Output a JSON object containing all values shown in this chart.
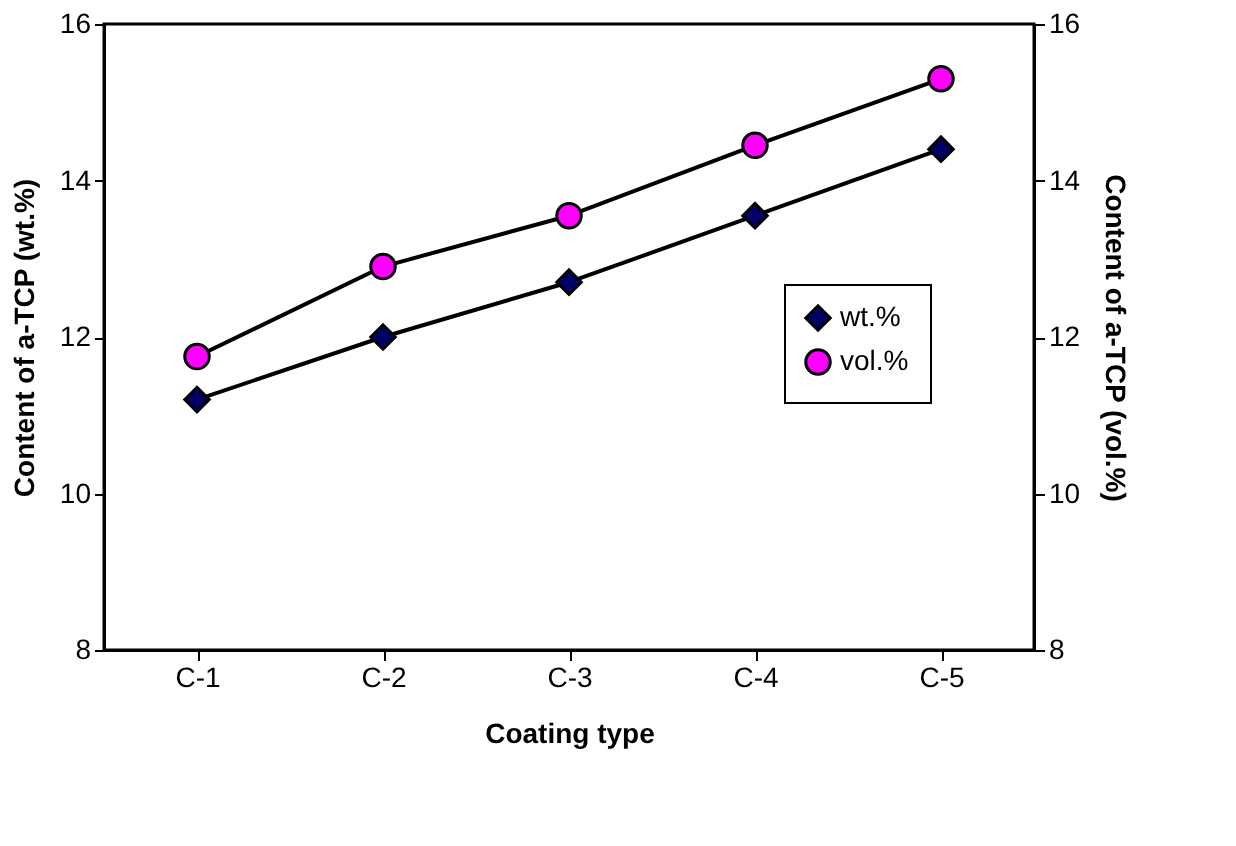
{
  "chart_data": {
    "type": "line",
    "xlabel": "Coating type",
    "ylabel": "Content of a-TCP (wt.%)",
    "y2label": "Content of a-TCP (vol.%)",
    "categories": [
      "C-1",
      "C-2",
      "C-3",
      "C-4",
      "C-5"
    ],
    "series": [
      {
        "name": "wt.%",
        "color": "#000066",
        "marker": "diamond",
        "values": [
          11.2,
          12.0,
          12.7,
          13.55,
          14.4
        ]
      },
      {
        "name": "vol.%",
        "color": "#ff00ff",
        "marker": "circle",
        "axis": "y2",
        "values": [
          11.75,
          12.9,
          13.55,
          14.45,
          15.3
        ]
      }
    ],
    "ylim": [
      8,
      16
    ],
    "yticks": [
      8,
      10,
      12,
      14,
      16
    ],
    "y2lim": [
      8,
      16
    ],
    "y2ticks": [
      8,
      10,
      12,
      14,
      16
    ],
    "grid": false,
    "legend": "right",
    "line_style": "solid"
  }
}
